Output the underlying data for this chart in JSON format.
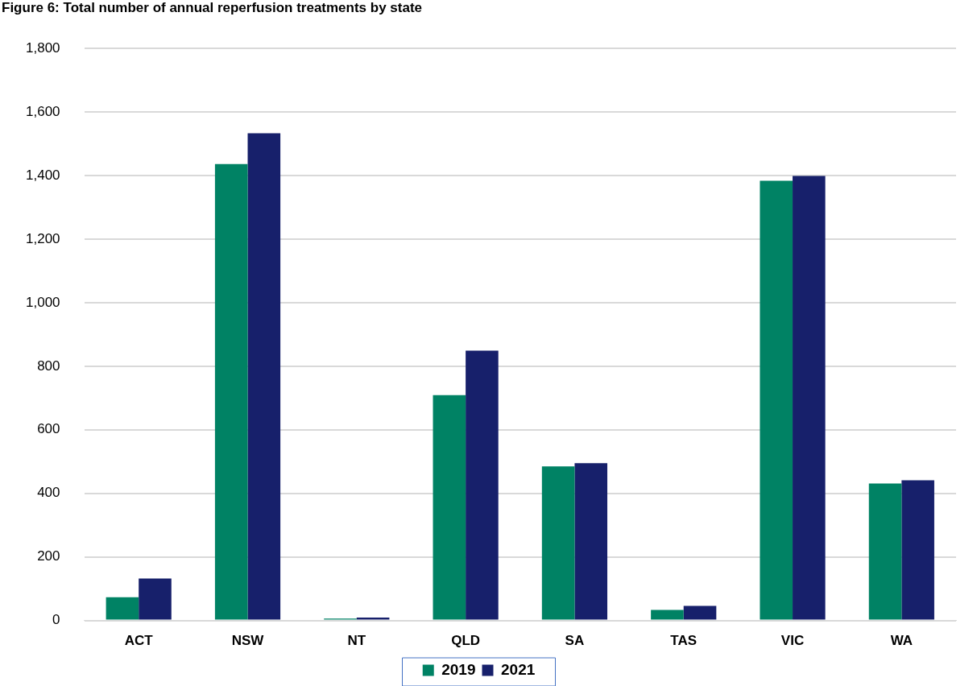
{
  "chart_data": {
    "type": "bar",
    "title": "Figure 6: Total number of annual reperfusion treatments by state",
    "categories": [
      "ACT",
      "NSW",
      "NT",
      "QLD",
      "SA",
      "TAS",
      "VIC",
      "WA"
    ],
    "series": [
      {
        "name": "2019",
        "color": "#008264",
        "values": [
          73,
          1436,
          6,
          709,
          485,
          33,
          1384,
          431
        ]
      },
      {
        "name": "2021",
        "color": "#17206b",
        "values": [
          132,
          1533,
          9,
          849,
          495,
          46,
          1399,
          441
        ]
      }
    ],
    "ylim": [
      0,
      1800
    ],
    "yticks": [
      0,
      200,
      400,
      600,
      800,
      {
        "value": 1000,
        "label": "1,000"
      },
      {
        "value": 1200,
        "label": "1,200"
      },
      {
        "value": 1400,
        "label": "1,400"
      },
      {
        "value": 1600,
        "label": "1,600"
      },
      {
        "value": 1800,
        "label": "1,800"
      }
    ],
    "grid": "y",
    "legend": "bottom"
  }
}
